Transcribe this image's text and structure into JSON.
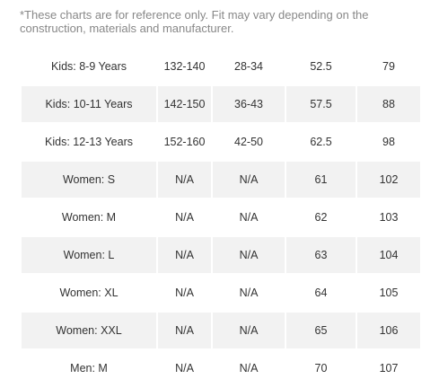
{
  "note": "*These charts are for reference only. Fit may vary depending on the construction, materials and manufacturer.",
  "rows": [
    [
      "Kids: 8-9 Years",
      "132-140",
      "28-34",
      "52.5",
      "79"
    ],
    [
      "Kids: 10-11 Years",
      "142-150",
      "36-43",
      "57.5",
      "88"
    ],
    [
      "Kids: 12-13 Years",
      "152-160",
      "42-50",
      "62.5",
      "98"
    ],
    [
      "Women: S",
      "N/A",
      "N/A",
      "61",
      "102"
    ],
    [
      "Women: M",
      "N/A",
      "N/A",
      "62",
      "103"
    ],
    [
      "Women: L",
      "N/A",
      "N/A",
      "63",
      "104"
    ],
    [
      "Women: XL",
      "N/A",
      "N/A",
      "64",
      "105"
    ],
    [
      "Women: XXL",
      "N/A",
      "N/A",
      "65",
      "106"
    ],
    [
      "Men: M",
      "N/A",
      "N/A",
      "70",
      "107"
    ]
  ],
  "colors": {
    "shaded_row": "#f2f2f2",
    "note_text": "#888888",
    "cell_text": "#333333"
  }
}
